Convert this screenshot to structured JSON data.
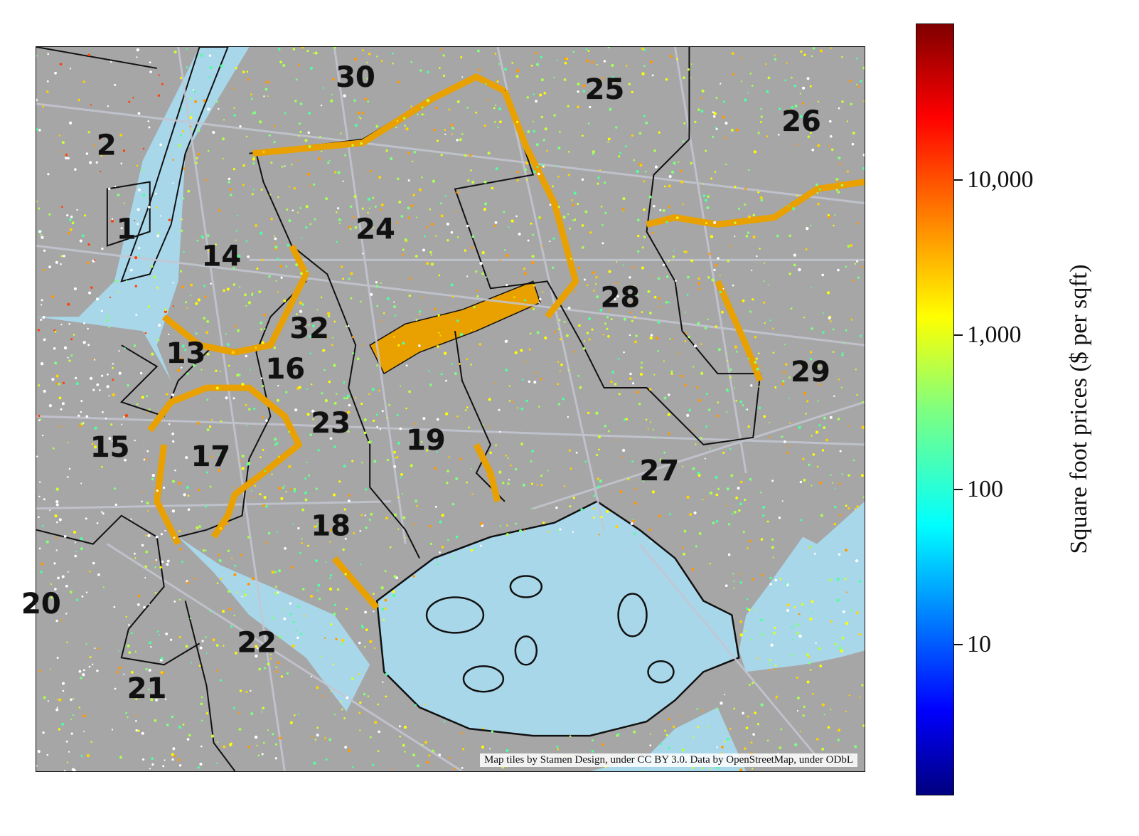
{
  "map": {
    "attribution": "Map tiles by Stamen Design, under CC BY 3.0. Data by OpenStreetMap, under ODbL",
    "district_labels": [
      {
        "id": "2",
        "text": "2"
      },
      {
        "id": "1",
        "text": "1"
      },
      {
        "id": "30",
        "text": "30"
      },
      {
        "id": "25",
        "text": "25"
      },
      {
        "id": "26",
        "text": "26"
      },
      {
        "id": "24",
        "text": "24"
      },
      {
        "id": "14",
        "text": "14"
      },
      {
        "id": "28",
        "text": "28"
      },
      {
        "id": "32",
        "text": "32"
      },
      {
        "id": "13",
        "text": "13"
      },
      {
        "id": "16",
        "text": "16"
      },
      {
        "id": "29",
        "text": "29"
      },
      {
        "id": "23",
        "text": "23"
      },
      {
        "id": "19",
        "text": "19"
      },
      {
        "id": "15",
        "text": "15"
      },
      {
        "id": "17",
        "text": "17"
      },
      {
        "id": "27",
        "text": "27"
      },
      {
        "id": "18",
        "text": "18"
      },
      {
        "id": "20",
        "text": "20"
      },
      {
        "id": "22",
        "text": "22"
      },
      {
        "id": "21",
        "text": "21"
      }
    ],
    "colors": {
      "water": "#a9d7ea",
      "land": "#a6a6a6",
      "roads": "#bfc1cc",
      "boundary_highlight": "#e8a100",
      "boundary_line": "#111111"
    }
  },
  "colorbar": {
    "title": "Square foot prices ($ per sqft)",
    "scale": "log",
    "colormap": "jet",
    "ticks": [
      "10,000",
      "1,000",
      "100",
      "10"
    ]
  }
}
